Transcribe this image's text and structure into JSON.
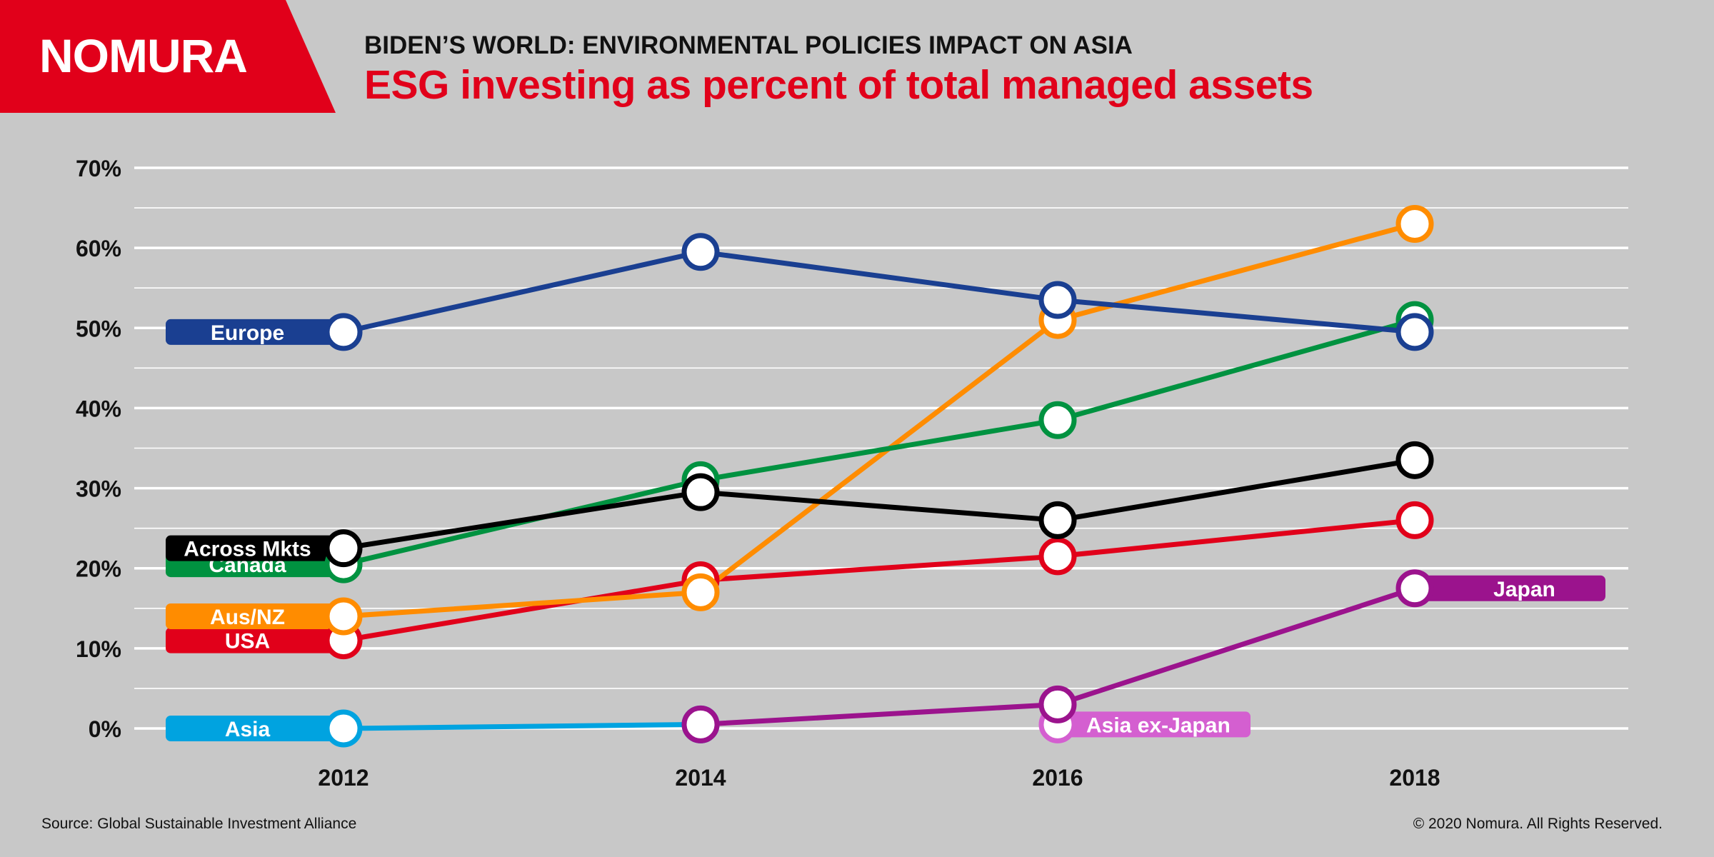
{
  "brand": {
    "logo_text": "NOMURA",
    "color": "#e1001a"
  },
  "header": {
    "kicker": "BIDEN’S WORLD: ENVIRONMENTAL POLICIES IMPACT ON ASIA",
    "title": "ESG investing as percent of total managed assets"
  },
  "footer": {
    "source": "Source: Global Sustainable Investment Alliance",
    "copyright": "© 2020 Nomura. All Rights Reserved."
  },
  "chart_data": {
    "type": "line",
    "title": "ESG investing as percent of total managed assets",
    "x": [
      2012,
      2014,
      2016,
      2018
    ],
    "x_tick_labels": [
      "2012",
      "2014",
      "2016",
      "2018"
    ],
    "y_ticks": [
      0,
      10,
      20,
      30,
      40,
      50,
      60,
      70
    ],
    "y_tick_labels": [
      "0%",
      "10%",
      "20%",
      "30%",
      "40%",
      "50%",
      "60%",
      "70%"
    ],
    "ylim": [
      0,
      70
    ],
    "xlabel": "",
    "ylabel": "",
    "grid": true,
    "legend": "labels on lines",
    "series": [
      {
        "name": "Asia",
        "color": "#00a3e0",
        "values": [
          0,
          0.5,
          null,
          null
        ],
        "label_side": "left"
      },
      {
        "name": "Asia ex-Japan",
        "color": "#d45fd0",
        "values": [
          null,
          null,
          0.5,
          null
        ],
        "label_side": "right"
      },
      {
        "name": "Japan",
        "color": "#9b138d",
        "values": [
          null,
          0.5,
          3,
          17.5
        ],
        "label_side": "right"
      },
      {
        "name": "USA",
        "color": "#e1001a",
        "values": [
          11,
          18.5,
          21.5,
          26
        ],
        "label_side": "left"
      },
      {
        "name": "Aus/NZ",
        "color": "#ff8c00",
        "values": [
          14,
          17,
          51,
          63
        ],
        "label_side": "left"
      },
      {
        "name": "Canada",
        "color": "#009240",
        "values": [
          20.5,
          31,
          38.5,
          51
        ],
        "label_side": "left"
      },
      {
        "name": "Across Mkts",
        "color": "#000000",
        "values": [
          22.5,
          29.5,
          26,
          33.5
        ],
        "label_side": "left"
      },
      {
        "name": "Europe",
        "color": "#1a3f91",
        "values": [
          49.5,
          59.5,
          53.5,
          49.5
        ],
        "label_side": "left"
      }
    ]
  }
}
